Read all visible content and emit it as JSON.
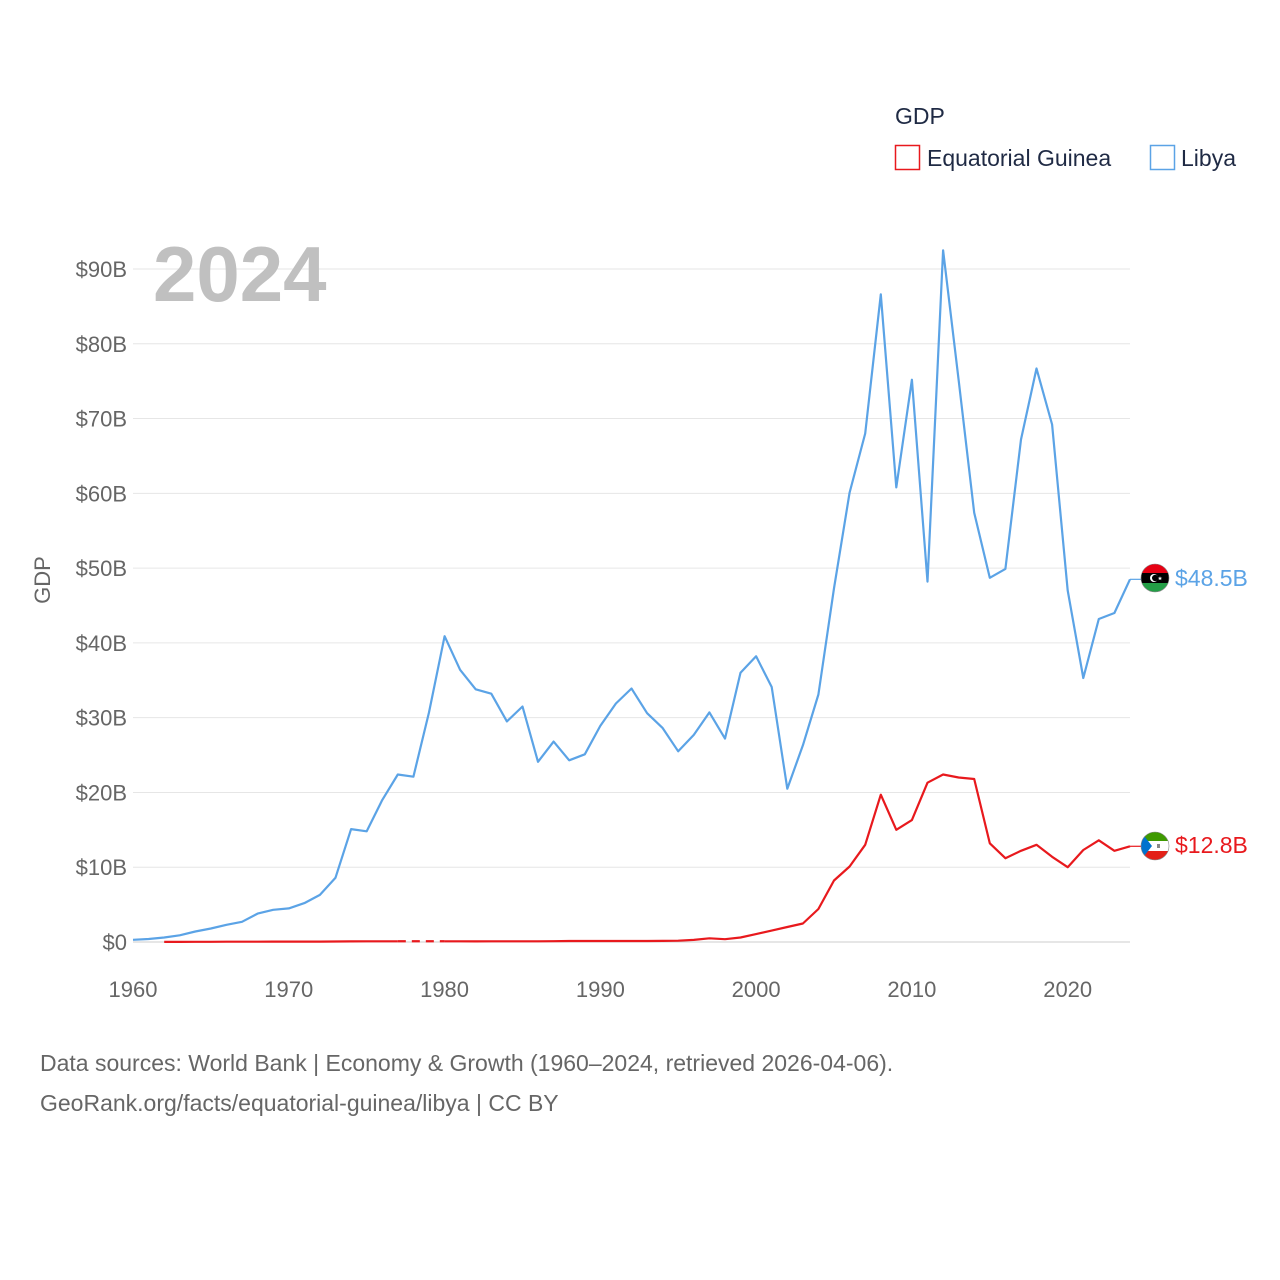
{
  "chart_data": {
    "type": "line",
    "title": "GDP",
    "year_label": "2024",
    "ylabel": "GDP",
    "xlabel": "",
    "ylim": [
      0,
      92
    ],
    "xlim": [
      1960,
      2024
    ],
    "y_ticks": [
      0,
      10,
      20,
      30,
      40,
      50,
      60,
      70,
      80,
      90
    ],
    "y_tick_labels": [
      "$0",
      "$10B",
      "$20B",
      "$30B",
      "$40B",
      "$50B",
      "$60B",
      "$70B",
      "$80B",
      "$90B"
    ],
    "x_ticks": [
      1960,
      1970,
      1980,
      1990,
      2000,
      2010,
      2020
    ],
    "x_tick_labels": [
      "1960",
      "1970",
      "1980",
      "1990",
      "2000",
      "2010",
      "2020"
    ],
    "grid": true,
    "legend_position": "top-right",
    "units": "billion USD",
    "series": [
      {
        "name": "Equatorial Guinea",
        "color": "#e8191d",
        "end_label": "$12.8B",
        "x": [
          1962,
          1963,
          1964,
          1965,
          1966,
          1967,
          1968,
          1969,
          1970,
          1971,
          1972,
          1973,
          1974,
          1975,
          1976,
          1977,
          1978,
          1979,
          1980,
          1981,
          1982,
          1983,
          1984,
          1985,
          1986,
          1987,
          1988,
          1989,
          1990,
          1991,
          1992,
          1993,
          1994,
          1995,
          1996,
          1997,
          1998,
          1999,
          2000,
          2001,
          2002,
          2003,
          2004,
          2005,
          2006,
          2007,
          2008,
          2009,
          2010,
          2011,
          2012,
          2013,
          2014,
          2015,
          2016,
          2017,
          2018,
          2019,
          2020,
          2021,
          2022,
          2023,
          2024
        ],
        "values": [
          0.01,
          0.02,
          0.03,
          0.03,
          0.04,
          0.04,
          0.04,
          0.05,
          0.05,
          0.05,
          0.06,
          0.07,
          0.08,
          0.09,
          0.09,
          0.1,
          null,
          null,
          0.1,
          0.09,
          0.08,
          0.09,
          0.1,
          0.1,
          0.1,
          0.11,
          0.13,
          0.13,
          0.13,
          0.13,
          0.14,
          0.14,
          0.15,
          0.18,
          0.28,
          0.49,
          0.37,
          0.6,
          1.05,
          1.53,
          2.0,
          2.48,
          4.41,
          8.22,
          10.1,
          13.0,
          19.7,
          15.0,
          16.3,
          21.3,
          22.4,
          22.0,
          21.8,
          13.2,
          11.2,
          12.2,
          13.0,
          11.4,
          10.0,
          12.3,
          13.6,
          12.2,
          12.8
        ]
      },
      {
        "name": "Libya",
        "color": "#5ba3e6",
        "end_label": "$48.5B",
        "x": [
          1960,
          1961,
          1962,
          1963,
          1964,
          1965,
          1966,
          1967,
          1968,
          1969,
          1970,
          1971,
          1972,
          1973,
          1974,
          1975,
          1976,
          1977,
          1978,
          1979,
          1980,
          1981,
          1982,
          1983,
          1984,
          1985,
          1986,
          1987,
          1988,
          1989,
          1990,
          1991,
          1992,
          1993,
          1994,
          1995,
          1996,
          1997,
          1998,
          1999,
          2000,
          2001,
          2002,
          2003,
          2004,
          2005,
          2006,
          2007,
          2008,
          2009,
          2010,
          2011,
          2012,
          2013,
          2014,
          2015,
          2016,
          2017,
          2018,
          2019,
          2020,
          2021,
          2022,
          2023,
          2024
        ],
        "values": [
          0.3,
          0.4,
          0.6,
          0.9,
          1.4,
          1.8,
          2.3,
          2.7,
          3.8,
          4.3,
          4.5,
          5.2,
          6.3,
          8.6,
          15.1,
          14.8,
          19.0,
          22.4,
          22.1,
          30.7,
          40.9,
          36.4,
          33.8,
          33.2,
          29.5,
          31.5,
          24.1,
          26.8,
          24.3,
          25.1,
          28.9,
          31.9,
          33.9,
          30.6,
          28.6,
          25.5,
          27.7,
          30.7,
          27.2,
          36.0,
          38.2,
          34.1,
          20.5,
          26.3,
          33.1,
          47.3,
          60.1,
          68.0,
          86.6,
          60.8,
          75.2,
          48.2,
          92.5,
          75.2,
          57.4,
          48.7,
          49.9,
          67.2,
          76.7,
          69.2,
          47.0,
          35.3,
          43.2,
          44.0,
          48.5
        ]
      }
    ]
  },
  "source": {
    "line1": "Data sources: World Bank | Economy & Growth (1960–2024, retrieved 2026-04-06).",
    "line2": "GeoRank.org/facts/equatorial-guinea/libya | CC BY"
  }
}
